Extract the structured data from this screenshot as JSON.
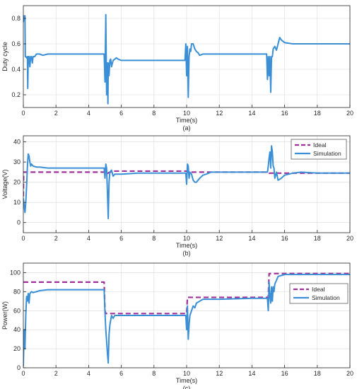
{
  "figure": {
    "background": "#ffffff",
    "axis_color": "#262626",
    "grid_color": "#d9d9d9",
    "simulation_color": "#3a8fd6",
    "ideal_color": "#a0309a"
  },
  "chart_data": [
    {
      "type": "line",
      "caption": "(a)",
      "xlabel": "Time(s)",
      "ylabel": "Duty cycle",
      "xlim": [
        0,
        20
      ],
      "ylim": [
        0.1,
        0.9
      ],
      "xticks": [
        0,
        2,
        4,
        6,
        8,
        10,
        12,
        14,
        16,
        18,
        20
      ],
      "yticks": [
        0.2,
        0.4,
        0.6,
        0.8
      ],
      "ytick_labels": [
        "0.2",
        "0.4",
        "0.6",
        "0.8"
      ],
      "grid": true,
      "legend": null,
      "series": [
        {
          "key": "duty",
          "style": "solid",
          "x": [
            0,
            0.05,
            0.1,
            0.12,
            0.15,
            0.2,
            0.25,
            0.27,
            0.3,
            0.32,
            0.35,
            0.4,
            0.45,
            0.5,
            0.55,
            0.6,
            0.7,
            0.8,
            1.0,
            1.2,
            1.5,
            2,
            3,
            4,
            4.95,
            5.0,
            5.05,
            5.1,
            5.15,
            5.18,
            5.2,
            5.25,
            5.3,
            5.35,
            5.4,
            5.5,
            5.6,
            5.7,
            5.8,
            6.0,
            7,
            8,
            9,
            9.9,
            9.95,
            10.0,
            10.05,
            10.1,
            10.15,
            10.2,
            10.25,
            10.3,
            10.4,
            10.5,
            10.6,
            10.7,
            10.8,
            11.0,
            11.2,
            11.5,
            12,
            14,
            14.9,
            14.95,
            15.0,
            15.05,
            15.1,
            15.15,
            15.2,
            15.25,
            15.3,
            15.4,
            15.5,
            15.6,
            15.7,
            15.8,
            16.0,
            16.5,
            17,
            18,
            20
          ],
          "y": [
            0.77,
            0.82,
            0.82,
            0.5,
            0.5,
            0.49,
            0.5,
            0.25,
            0.48,
            0.5,
            0.5,
            0.42,
            0.5,
            0.5,
            0.45,
            0.5,
            0.5,
            0.52,
            0.52,
            0.51,
            0.52,
            0.52,
            0.52,
            0.52,
            0.52,
            0.3,
            0.83,
            0.2,
            0.45,
            0.13,
            0.45,
            0.35,
            0.47,
            0.48,
            0.42,
            0.47,
            0.48,
            0.49,
            0.48,
            0.47,
            0.47,
            0.47,
            0.47,
            0.47,
            0.6,
            0.35,
            0.58,
            0.18,
            0.5,
            0.56,
            0.54,
            0.6,
            0.6,
            0.56,
            0.54,
            0.53,
            0.51,
            0.52,
            0.52,
            0.52,
            0.52,
            0.52,
            0.52,
            0.32,
            0.5,
            0.35,
            0.5,
            0.22,
            0.5,
            0.5,
            0.56,
            0.58,
            0.55,
            0.6,
            0.65,
            0.63,
            0.61,
            0.6,
            0.6,
            0.6,
            0.6
          ]
        }
      ]
    },
    {
      "type": "line",
      "caption": "(b)",
      "xlabel": "Time(s)",
      "ylabel": "Voltage(V)",
      "xlim": [
        0,
        20
      ],
      "ylim": [
        -5,
        43
      ],
      "xticks": [
        0,
        2,
        4,
        6,
        8,
        10,
        12,
        14,
        16,
        18,
        20
      ],
      "yticks": [
        0,
        10,
        20,
        30,
        40
      ],
      "ytick_labels": [
        "0",
        "10",
        "20",
        "30",
        "40"
      ],
      "grid": true,
      "legend": {
        "position": "top-right",
        "entries": [
          "Ideal",
          "Simulation"
        ]
      },
      "series": [
        {
          "key": "ideal",
          "name": "Ideal",
          "style": "dashed",
          "x": [
            0,
            0.02,
            0.05,
            5.0,
            5.05,
            5.3,
            5.6,
            10.0,
            10.05,
            15.0,
            15.05,
            20
          ],
          "y": [
            13,
            25,
            25,
            25,
            24,
            25,
            25.5,
            25.5,
            25,
            25,
            24.5,
            24.5
          ]
        },
        {
          "key": "simulation",
          "name": "Simulation",
          "style": "solid",
          "x": [
            0,
            0.1,
            0.15,
            0.2,
            0.25,
            0.3,
            0.35,
            0.4,
            0.45,
            0.5,
            0.6,
            0.8,
            1.0,
            1.5,
            2,
            3,
            4,
            4.95,
            5.0,
            5.05,
            5.1,
            5.15,
            5.2,
            5.25,
            5.3,
            5.4,
            5.5,
            5.6,
            5.8,
            6.0,
            7,
            8,
            9,
            9.95,
            10.0,
            10.05,
            10.1,
            10.15,
            10.2,
            10.3,
            10.4,
            10.5,
            10.6,
            10.8,
            11.0,
            11.2,
            11.5,
            12,
            14,
            14.95,
            15.0,
            15.05,
            15.1,
            15.15,
            15.2,
            15.25,
            15.3,
            15.35,
            15.4,
            15.5,
            15.6,
            15.8,
            16.0,
            16.5,
            17,
            18,
            20
          ],
          "y": [
            12,
            5,
            10,
            18,
            28,
            34,
            33,
            30,
            28,
            29,
            28,
            27.5,
            27.5,
            27,
            27,
            27,
            27,
            27,
            22,
            29,
            27,
            15,
            2,
            20,
            25,
            26,
            23,
            24,
            24,
            24,
            24.5,
            24.5,
            24.5,
            24.5,
            19,
            29,
            28,
            22,
            25,
            24,
            21,
            20,
            20,
            22,
            23.5,
            24,
            25,
            25,
            25,
            25,
            28,
            32,
            35,
            27,
            38,
            35,
            28,
            27,
            22,
            25,
            21,
            22,
            23.5,
            24.5,
            25,
            24.5,
            24.5
          ]
        }
      ]
    },
    {
      "type": "line",
      "caption": "(c)",
      "xlabel": "Time(s)",
      "ylabel": "Power(W)",
      "xlim": [
        0,
        20
      ],
      "ylim": [
        0,
        110
      ],
      "xticks": [
        0,
        2,
        4,
        6,
        8,
        10,
        12,
        14,
        16,
        18,
        20
      ],
      "yticks": [
        0,
        20,
        40,
        60,
        80,
        100
      ],
      "ytick_labels": [
        "0",
        "20",
        "40",
        "60",
        "80",
        "100"
      ],
      "grid": true,
      "legend": {
        "position": "right",
        "entries": [
          "Ideal",
          "Simulation"
        ]
      },
      "series": [
        {
          "key": "ideal",
          "name": "Ideal",
          "style": "dashed",
          "x": [
            0,
            4.95,
            5.0,
            5.05,
            10.0,
            10.05,
            15.0,
            15.05,
            20
          ],
          "y": [
            90,
            90,
            60,
            57,
            57,
            74,
            74,
            99,
            99
          ]
        },
        {
          "key": "simulation",
          "name": "Simulation",
          "style": "solid",
          "x": [
            0,
            0.05,
            0.1,
            0.15,
            0.2,
            0.25,
            0.3,
            0.35,
            0.4,
            0.5,
            0.6,
            0.8,
            1.0,
            1.5,
            2,
            3,
            4,
            4.95,
            5.0,
            5.05,
            5.1,
            5.15,
            5.2,
            5.25,
            5.3,
            5.4,
            5.5,
            5.6,
            5.8,
            6.0,
            7,
            8,
            9,
            9.95,
            10.0,
            10.05,
            10.1,
            10.15,
            10.2,
            10.3,
            10.4,
            10.5,
            10.6,
            10.8,
            11.0,
            11.5,
            12,
            14,
            14.95,
            15.0,
            15.05,
            15.1,
            15.15,
            15.2,
            15.25,
            15.3,
            15.35,
            15.4,
            15.5,
            15.6,
            15.8,
            16.0,
            16.5,
            17,
            18,
            20
          ],
          "y": [
            2,
            40,
            20,
            55,
            75,
            70,
            78,
            68,
            78,
            80,
            79,
            80,
            81,
            82,
            82,
            82,
            82,
            82,
            58,
            40,
            28,
            15,
            5,
            35,
            45,
            55,
            52,
            55,
            55,
            55,
            55,
            55,
            55,
            55,
            40,
            65,
            30,
            45,
            55,
            60,
            65,
            63,
            68,
            70,
            72,
            72,
            72,
            73,
            73,
            60,
            90,
            75,
            68,
            85,
            70,
            85,
            80,
            88,
            92,
            96,
            97,
            98,
            98,
            98,
            98,
            98
          ]
        }
      ]
    }
  ]
}
